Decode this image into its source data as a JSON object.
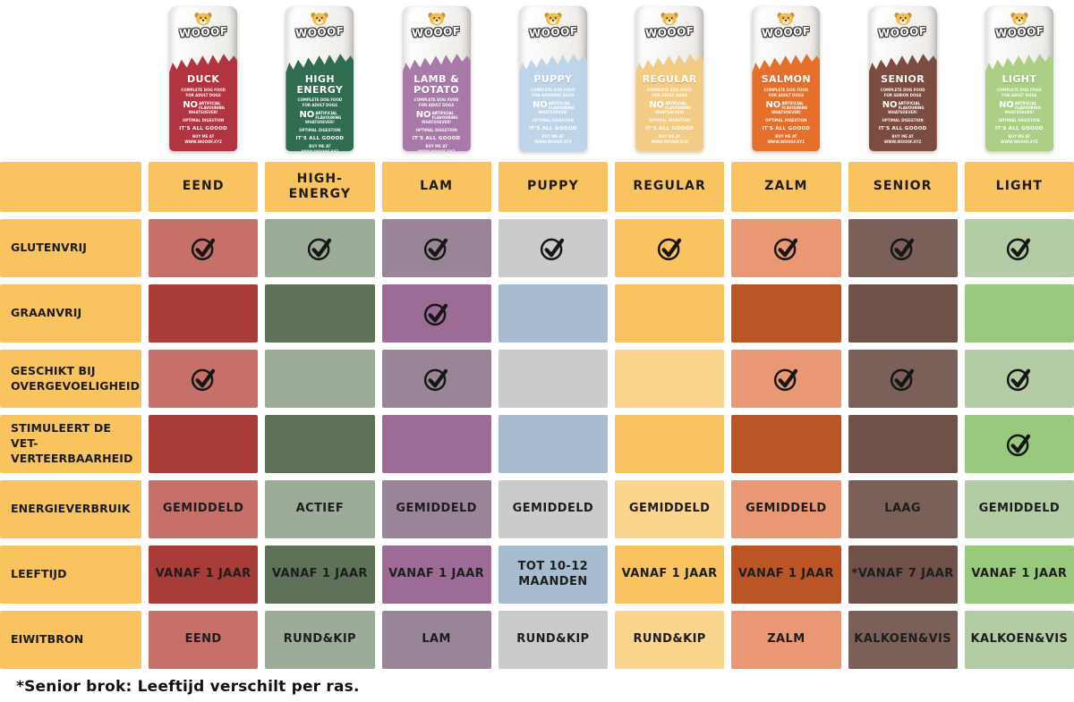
{
  "page": {
    "background": "#FFFFFF",
    "label_bg": "#F9C45F",
    "text_color": "#1D1D1D",
    "footnote": "*Senior brok: Leeftijd verschilt per ras."
  },
  "brand": {
    "logo": "WOOOF",
    "no_word": "NO",
    "no_rest": "ARTIFICIAL FLAVOURING",
    "whatsoever": "WHATSOEVER!",
    "digestion": "OPTIMAL DIGESTION",
    "goood": "IT'S ALL GOOOD",
    "buy": "BUY ME AT",
    "site": "WWW.WOOOF.XYZ"
  },
  "products": [
    {
      "header": "EEND",
      "bag": {
        "color": "#B23440",
        "name_lines": [
          "DUCK"
        ],
        "sub_lines": [
          "COMPLETE DOG FOOD",
          "FOR ADULT DOGS"
        ]
      }
    },
    {
      "header": "HIGH-ENERGY",
      "bag": {
        "color": "#2F6C50",
        "name_lines": [
          "HIGH",
          "ENERGY"
        ],
        "sub_lines": [
          "COMPLETE DOG FOOD",
          "FOR ADULT DOGS"
        ]
      }
    },
    {
      "header": "LAM",
      "bag": {
        "color": "#A97AA9",
        "name_lines": [
          "LAMB &",
          "POTATO"
        ],
        "sub_lines": [
          "COMPLETE DOG FOOD",
          "FOR ADULT DOGS"
        ]
      }
    },
    {
      "header": "PUPPY",
      "bag": {
        "color": "#BED5E9",
        "name_lines": [
          "PUPPY"
        ],
        "sub_lines": [
          "COMPLETE DOG FOOD",
          "FOR GROWING DOGS"
        ]
      }
    },
    {
      "header": "REGULAR",
      "bag": {
        "color": "#F2CB84",
        "name_lines": [
          "REGULAR"
        ],
        "sub_lines": [
          "COMPLETE DOG FOOD",
          "FOR ADULT DOGS"
        ]
      }
    },
    {
      "header": "ZALM",
      "bag": {
        "color": "#E4702B",
        "name_lines": [
          "SALMON"
        ],
        "sub_lines": [
          "COMPLETE DOG FOOD",
          "FOR ADULT DOGS"
        ]
      }
    },
    {
      "header": "SENIOR",
      "bag": {
        "color": "#7D4C41",
        "name_lines": [
          "SENIOR"
        ],
        "sub_lines": [
          "COMPLETE DOG FOOD",
          "FOR SENIOR DOGS"
        ]
      }
    },
    {
      "header": "LIGHT",
      "bag": {
        "color": "#ABCF85",
        "name_lines": [
          "LIGHT"
        ],
        "sub_lines": [
          "COMPLETE DOG FOOD",
          "FOR ADULT DOGS"
        ]
      }
    }
  ],
  "table": {
    "rows": [
      {
        "label": "GLUTENVRIJ",
        "cells": [
          {
            "bg": "#C7706A",
            "check": true
          },
          {
            "bg": "#9DAC99",
            "check": true
          },
          {
            "bg": "#9A8598",
            "check": true
          },
          {
            "bg": "#C9CBCC",
            "check": true
          },
          {
            "bg": "#F9C45F",
            "check": true
          },
          {
            "bg": "#EA9873",
            "check": true
          },
          {
            "bg": "#7B5F59",
            "check": true
          },
          {
            "bg": "#B4CCA5",
            "check": true
          }
        ]
      },
      {
        "label": "GRAANVRIJ",
        "cells": [
          {
            "bg": "#A73C38"
          },
          {
            "bg": "#5F7159"
          },
          {
            "bg": "#9D6C96",
            "check": true
          },
          {
            "bg": "#A7BDCF"
          },
          {
            "bg": "#F9C45F"
          },
          {
            "bg": "#BC5526"
          },
          {
            "bg": "#705149"
          },
          {
            "bg": "#99C97C"
          }
        ]
      },
      {
        "label": "GESCHIKT BIJ\nOVERGEVOELIGHEID",
        "cells": [
          {
            "bg": "#C7706A",
            "check": true
          },
          {
            "bg": "#9DAC99"
          },
          {
            "bg": "#9A8598",
            "check": true
          },
          {
            "bg": "#C9CBCC"
          },
          {
            "bg": "#FBD48E"
          },
          {
            "bg": "#EA9873",
            "check": true
          },
          {
            "bg": "#7B5F59",
            "check": true
          },
          {
            "bg": "#B4CCA5",
            "check": true
          }
        ]
      },
      {
        "label": "STIMULEERT DE VET-\nVERTEERBAARHEID",
        "cells": [
          {
            "bg": "#A73C38"
          },
          {
            "bg": "#5F7159"
          },
          {
            "bg": "#9D6C96"
          },
          {
            "bg": "#A7BDCF"
          },
          {
            "bg": "#F9C45F"
          },
          {
            "bg": "#BC5526"
          },
          {
            "bg": "#705149"
          },
          {
            "bg": "#99C97C",
            "check": true
          }
        ]
      },
      {
        "label": "ENERGIEVERBRUIK",
        "cells": [
          {
            "bg": "#C7706A",
            "text": "GEMIDDELD"
          },
          {
            "bg": "#9DAC99",
            "text": "ACTIEF"
          },
          {
            "bg": "#9A8598",
            "text": "GEMIDDELD"
          },
          {
            "bg": "#C9CBCC",
            "text": "GEMIDDELD"
          },
          {
            "bg": "#FBD48E",
            "text": "GEMIDDELD"
          },
          {
            "bg": "#EA9873",
            "text": "GEMIDDELD"
          },
          {
            "bg": "#7B5F59",
            "text": "LAAG"
          },
          {
            "bg": "#B4CCA5",
            "text": "GEMIDDELD"
          }
        ]
      },
      {
        "label": "LEEFTIJD",
        "cells": [
          {
            "bg": "#A73C38",
            "text": "VANAF 1 JAAR"
          },
          {
            "bg": "#5F7159",
            "text": "VANAF 1 JAAR"
          },
          {
            "bg": "#9D6C96",
            "text": "VANAF 1 JAAR"
          },
          {
            "bg": "#A7BDCF",
            "text": "TOT 10-12\nMAANDEN"
          },
          {
            "bg": "#F9C45F",
            "text": "VANAF 1 JAAR"
          },
          {
            "bg": "#BC5526",
            "text": "VANAF 1 JAAR"
          },
          {
            "bg": "#705149",
            "text": "*VANAF 7 JAAR"
          },
          {
            "bg": "#99C97C",
            "text": "VANAF 1 JAAR"
          }
        ]
      },
      {
        "label": "EIWITBRON",
        "cells": [
          {
            "bg": "#C7706A",
            "text": "EEND"
          },
          {
            "bg": "#9DAC99",
            "text": "RUND&KIP"
          },
          {
            "bg": "#9A8598",
            "text": "LAM"
          },
          {
            "bg": "#C9CBCC",
            "text": "RUND&KIP"
          },
          {
            "bg": "#FBD48E",
            "text": "RUND&KIP"
          },
          {
            "bg": "#EA9873",
            "text": "ZALM"
          },
          {
            "bg": "#7B5F59",
            "text": "KALKOEN&VIS"
          },
          {
            "bg": "#B4CCA5",
            "text": "KALKOEN&VIS"
          }
        ]
      }
    ]
  },
  "chart_data": {
    "type": "table",
    "title": "WOOOF hondenvoer vergelijking",
    "columns": [
      "EEND",
      "HIGH-ENERGY",
      "LAM",
      "PUPPY",
      "REGULAR",
      "ZALM",
      "SENIOR",
      "LIGHT"
    ],
    "rows": [
      "GLUTENVRIJ",
      "GRAANVRIJ",
      "GESCHIKT BIJ OVERGEVOELIGHEID",
      "STIMULEERT DE VET-VERTEERBAARHEID",
      "ENERGIEVERBRUIK",
      "LEEFTIJD",
      "EIWITBRON"
    ],
    "values": [
      [
        "✓",
        "✓",
        "✓",
        "✓",
        "✓",
        "✓",
        "✓",
        "✓"
      ],
      [
        "",
        "",
        "✓",
        "",
        "",
        "",
        "",
        ""
      ],
      [
        "✓",
        "",
        "✓",
        "",
        "",
        "✓",
        "✓",
        "✓"
      ],
      [
        "",
        "",
        "",
        "",
        "",
        "",
        "",
        "✓"
      ],
      [
        "GEMIDDELD",
        "ACTIEF",
        "GEMIDDELD",
        "GEMIDDELD",
        "GEMIDDELD",
        "GEMIDDELD",
        "LAAG",
        "GEMIDDELD"
      ],
      [
        "VANAF 1 JAAR",
        "VANAF 1 JAAR",
        "VANAF 1 JAAR",
        "TOT 10-12 MAANDEN",
        "VANAF 1 JAAR",
        "VANAF 1 JAAR",
        "*VANAF 7 JAAR",
        "VANAF 1 JAAR"
      ],
      [
        "EEND",
        "RUND&KIP",
        "LAM",
        "RUND&KIP",
        "RUND&KIP",
        "ZALM",
        "KALKOEN&VIS",
        "KALKOEN&VIS"
      ]
    ],
    "footnote": "*Senior brok: Leeftijd verschilt per ras."
  }
}
